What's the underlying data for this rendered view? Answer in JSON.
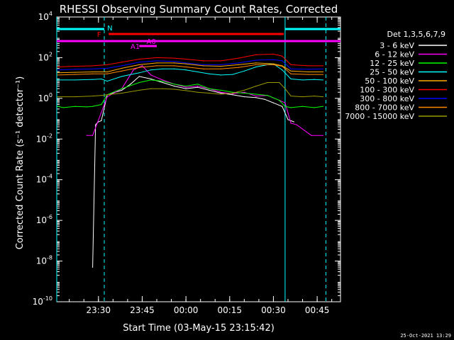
{
  "chart_data": {
    "type": "line",
    "title": "RHESSI Observing Summary Count Rates, Corrected",
    "xlabel": "Start Time (03-May-15 23:15:42)",
    "ylabel": "Corrected Count Rate (s⁻¹ detector⁻¹)",
    "y_scale": "log",
    "ylim": [
      1e-10,
      10000.0
    ],
    "xlim": [
      "23:15:42",
      "00:53:00"
    ],
    "x_ticks": [
      "23:30",
      "23:45",
      "00:00",
      "00:15",
      "00:30",
      "00:45"
    ],
    "y_ticks": [
      {
        "base": "10",
        "exp": "4"
      },
      {
        "base": "10",
        "exp": "2"
      },
      {
        "base": "10",
        "exp": "0"
      },
      {
        "base": "10",
        "exp": "-2"
      },
      {
        "base": "10",
        "exp": "-4"
      },
      {
        "base": "10",
        "exp": "-6"
      },
      {
        "base": "10",
        "exp": "-8"
      },
      {
        "base": "10",
        "exp": "-10"
      }
    ],
    "legend_title": "Det 1,3,5,6,7,9",
    "legend_position": "right",
    "series": [
      {
        "name": "3 - 6 keV",
        "color": "#ffffff",
        "x": [
          "23:15:42",
          "23:28:00",
          "23:29:00",
          "23:29:30",
          "23:30:00",
          "23:31:00",
          "23:33:00",
          "23:38:00",
          "23:41:00",
          "23:44:00",
          "23:48:00",
          "23:52:00",
          "23:56:00",
          "00:00:00",
          "00:04:00",
          "00:08:00",
          "00:12:00",
          "00:16:00",
          "00:20:00",
          "00:24:00",
          "00:27:00",
          "00:30:00",
          "00:33:00",
          "00:35:00",
          "00:37:00"
        ],
        "y": [
          null,
          5e-09,
          0.05,
          0.06,
          0.07,
          0.08,
          1.5,
          2.5,
          5,
          12,
          9,
          6,
          4,
          3,
          3.5,
          2.5,
          1.8,
          1.5,
          1.2,
          1.1,
          0.9,
          0.6,
          0.4,
          0.09,
          0.07
        ]
      },
      {
        "name": "6 - 12 keV",
        "color": "#ff00ff",
        "x": [
          "23:15:42",
          "23:24:00",
          "23:26:00",
          "23:28:00",
          "23:33:00",
          "23:38:00",
          "23:42:00",
          "23:45:00",
          "23:48:00",
          "23:52:00",
          "23:56:00",
          "00:00:00",
          "00:04:00",
          "00:08:00",
          "00:12:00",
          "00:16:00",
          "00:20:00",
          "00:24:00",
          "00:28:00",
          "00:32:00",
          "00:34:00",
          "00:36:00",
          "00:38:00",
          "00:43:00",
          "00:47:00",
          "00:53:00"
        ],
        "y": [
          null,
          null,
          0.015,
          0.015,
          1.2,
          3,
          25,
          40,
          14,
          8,
          5,
          3.5,
          4,
          3,
          2,
          1.7,
          2,
          1.3,
          1.4,
          0.8,
          0.6,
          0.06,
          0.05,
          0.015,
          0.015,
          null
        ]
      },
      {
        "name": "12 - 25 keV",
        "color": "#00ff00",
        "x": [
          "23:15:42",
          "23:16:00",
          "23:18:00",
          "23:22:00",
          "23:26:00",
          "23:28:00",
          "23:31:00",
          "23:33:00",
          "23:38:00",
          "23:44:00",
          "23:48:00",
          "23:52:00",
          "23:56:00",
          "00:00:00",
          "00:04:00",
          "00:08:00",
          "00:12:00",
          "00:16:00",
          "00:20:00",
          "00:24:00",
          "00:28:00",
          "00:32:00",
          "00:34:00",
          "00:36:00",
          "00:40:00",
          "00:44:00",
          "00:47:00"
        ],
        "y": [
          null,
          0.4,
          0.35,
          0.4,
          0.38,
          0.4,
          0.5,
          1.5,
          3,
          6,
          8,
          7,
          5,
          4,
          5,
          3,
          2.5,
          2,
          1.8,
          1.6,
          1.4,
          0.8,
          0.4,
          0.35,
          0.4,
          0.35,
          0.4
        ]
      },
      {
        "name": "25 - 50 keV",
        "color": "#00ffff",
        "x": [
          "23:15:42",
          "23:16:00",
          "23:22:00",
          "23:28:00",
          "23:31:00",
          "23:33:00",
          "23:38:00",
          "23:44:00",
          "23:48:00",
          "23:52:00",
          "23:56:00",
          "00:00:00",
          "00:04:00",
          "00:08:00",
          "00:12:00",
          "00:16:00",
          "00:20:00",
          "00:24:00",
          "00:28:00",
          "00:30:00",
          "00:33:00",
          "00:36:00",
          "00:40:00",
          "00:44:00",
          "00:47:00"
        ],
        "y": [
          null,
          8,
          8,
          8.5,
          9,
          7,
          12,
          18,
          25,
          28,
          28,
          25,
          20,
          16,
          14,
          15,
          22,
          35,
          45,
          50,
          25,
          9,
          8,
          8.5,
          8
        ]
      },
      {
        "name": "50 - 100 keV",
        "color": "#ffaa00",
        "x": [
          "23:15:42",
          "23:16:00",
          "23:22:00",
          "23:28:00",
          "23:33:00",
          "23:38:00",
          "23:44:00",
          "23:50:00",
          "23:56:00",
          "00:00:00",
          "00:06:00",
          "00:12:00",
          "00:18:00",
          "00:24:00",
          "00:30:00",
          "00:33:00",
          "00:36:00",
          "00:42:00",
          "00:47:00"
        ],
        "y": [
          null,
          18,
          19,
          20,
          20,
          30,
          45,
          55,
          55,
          50,
          40,
          38,
          45,
          55,
          50,
          40,
          22,
          20,
          20
        ]
      },
      {
        "name": "100 - 300 keV",
        "color": "#ff0000",
        "x": [
          "23:15:42",
          "23:16:00",
          "23:22:00",
          "23:28:00",
          "23:33:00",
          "23:38:00",
          "23:44:00",
          "23:50:00",
          "23:56:00",
          "00:00:00",
          "00:06:00",
          "00:12:00",
          "00:18:00",
          "00:24:00",
          "00:30:00",
          "00:33:00",
          "00:36:00",
          "00:42:00",
          "00:47:00"
        ],
        "y": [
          null,
          35,
          38,
          40,
          45,
          60,
          85,
          100,
          95,
          85,
          70,
          70,
          95,
          140,
          150,
          120,
          45,
          40,
          40
        ]
      },
      {
        "name": "300 - 800 keV",
        "color": "#0000ff",
        "x": [
          "23:15:42",
          "23:16:00",
          "23:22:00",
          "23:28:00",
          "23:33:00",
          "23:38:00",
          "23:44:00",
          "23:50:00",
          "23:56:00",
          "00:00:00",
          "00:06:00",
          "00:12:00",
          "00:18:00",
          "00:24:00",
          "00:30:00",
          "00:33:00",
          "00:36:00",
          "00:42:00",
          "00:47:00"
        ],
        "y": [
          null,
          25,
          27,
          28,
          30,
          40,
          60,
          70,
          65,
          55,
          45,
          45,
          55,
          75,
          80,
          70,
          28,
          27,
          28
        ]
      },
      {
        "name": "800 - 7000 keV",
        "color": "#ff8800",
        "x": [
          "23:15:42",
          "23:16:00",
          "23:22:00",
          "23:28:00",
          "23:33:00",
          "23:38:00",
          "23:44:00",
          "23:50:00",
          "23:56:00",
          "00:00:00",
          "00:06:00",
          "00:12:00",
          "00:18:00",
          "00:24:00",
          "00:30:00",
          "00:33:00",
          "00:36:00",
          "00:42:00",
          "00:47:00"
        ],
        "y": [
          null,
          14,
          15,
          16,
          16,
          22,
          33,
          40,
          40,
          35,
          28,
          28,
          33,
          45,
          45,
          38,
          16,
          15,
          15
        ]
      },
      {
        "name": "7000 - 15000 keV",
        "color": "#999900",
        "x": [
          "23:15:42",
          "23:16:00",
          "23:22:00",
          "23:28:00",
          "23:31:00",
          "23:33:00",
          "23:38:00",
          "23:44:00",
          "23:48:00",
          "23:52:00",
          "23:56:00",
          "00:00:00",
          "00:04:00",
          "00:08:00",
          "00:12:00",
          "00:16:00",
          "00:20:00",
          "00:24:00",
          "00:28:00",
          "00:32:00",
          "00:34:00",
          "00:36:00",
          "00:40:00",
          "00:44:00",
          "00:47:00"
        ],
        "y": [
          null,
          1.2,
          1.2,
          1.3,
          1.4,
          1.5,
          1.8,
          2.5,
          3,
          3,
          2.8,
          2.4,
          2,
          1.8,
          1.6,
          1.8,
          2.5,
          4,
          6,
          6,
          3,
          1.3,
          1.2,
          1.3,
          1.2
        ]
      }
    ],
    "annotations": {
      "night_label": "N",
      "flare_label": "F",
      "attenuator_labels": [
        "A0",
        "A1"
      ],
      "night_color": "#00ffff",
      "flare_color": "#ff0000",
      "attenuator_color": "#ff00ff",
      "vlines_solid": [
        "23:15:42",
        "00:34:00"
      ],
      "vlines_dashed": [
        "23:32:00",
        "00:48:00"
      ]
    }
  },
  "footer": {
    "timestamp": "25-Oct-2021 13:29"
  }
}
